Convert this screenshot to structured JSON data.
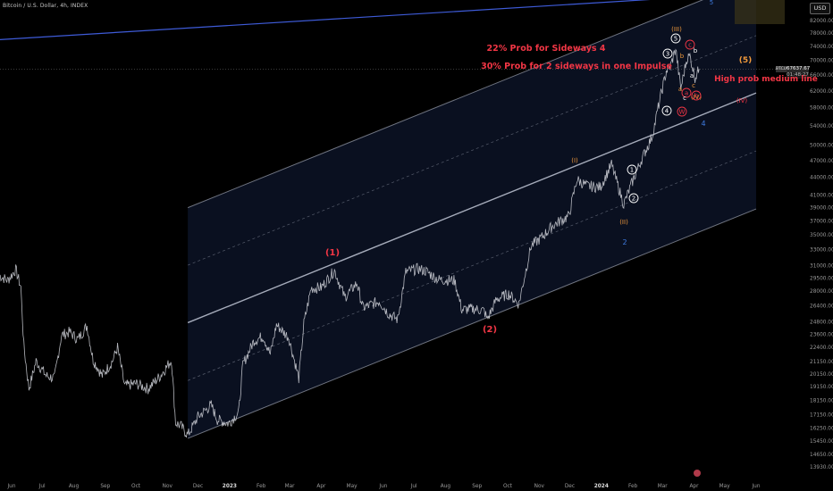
{
  "header": {
    "title": "Bitcoin / U.S. Dollar, 4h, INDEX",
    "currency_button": "USD",
    "symbol_tag": "BTCUSD",
    "last_price": "67637.67",
    "countdown": "01:48:27"
  },
  "colors": {
    "background": "#000000",
    "price_line": "#c9cbd2",
    "channel": "#b6bccb",
    "channel_fill": "#0b1223",
    "trendline": "#3e5bd8",
    "red_text": "#f23645",
    "orange_text": "#f0993b",
    "blue_text": "#3f7be0",
    "white_labels": "#ffffff"
  },
  "chart_data": {
    "type": "line",
    "title": "",
    "xlabel": "",
    "ylabel": "",
    "y_scale": "log",
    "ylim": [
      13200,
      92000
    ],
    "x_tick_labels": [
      "Jun",
      "Jul",
      "Aug",
      "Sep",
      "Oct",
      "Nov",
      "Dec",
      "2023",
      "Feb",
      "Mar",
      "Apr",
      "May",
      "Jun",
      "Jul",
      "Aug",
      "Sep",
      "Oct",
      "Nov",
      "Dec",
      "2024",
      "Feb",
      "Mar",
      "Apr",
      "May",
      "Jun"
    ],
    "y_tick_labels": [
      "82000.00",
      "78000.00",
      "74000.00",
      "70000.00",
      "66000.00",
      "62000.00",
      "58000.00",
      "54000.00",
      "50000.00",
      "47000.00",
      "44000.00",
      "41000.00",
      "39000.00",
      "37000.00",
      "35000.00",
      "33000.00",
      "31000.00",
      "29500.00",
      "28000.00",
      "26400.00",
      "24800.00",
      "23600.00",
      "22400.00",
      "21150.00",
      "20150.00",
      "19150.00",
      "18150.00",
      "17150.00",
      "16250.00",
      "15450.00",
      "14650.00",
      "13930.00"
    ],
    "x_index_dates": [
      "2022-06-01",
      "2022-07-01",
      "2022-08-01",
      "2022-09-01",
      "2022-10-01",
      "2022-11-01",
      "2022-12-01",
      "2023-01-01",
      "2023-02-01",
      "2023-03-01",
      "2023-04-01",
      "2023-05-01",
      "2023-06-01",
      "2023-07-01",
      "2023-08-01",
      "2023-09-01",
      "2023-10-01",
      "2023-11-01",
      "2023-12-01",
      "2024-01-01",
      "2024-02-01",
      "2024-03-01",
      "2024-04-01",
      "2024-05-01",
      "2024-06-01"
    ],
    "series": [
      {
        "x": [
          "2022-05-20",
          "2022-05-28",
          "2022-06-05",
          "2022-06-10",
          "2022-06-13",
          "2022-06-18",
          "2022-06-25",
          "2022-07-05",
          "2022-07-13",
          "2022-07-20",
          "2022-07-28",
          "2022-08-05",
          "2022-08-14",
          "2022-08-20",
          "2022-08-29",
          "2022-09-08",
          "2022-09-13",
          "2022-09-20",
          "2022-10-01",
          "2022-10-13",
          "2022-10-25",
          "2022-11-05",
          "2022-11-09",
          "2022-11-14",
          "2022-11-21",
          "2022-12-01",
          "2022-12-14",
          "2022-12-20",
          "2022-12-31",
          "2023-01-10",
          "2023-01-14",
          "2023-01-25",
          "2023-02-03",
          "2023-02-10",
          "2023-02-16",
          "2023-02-28",
          "2023-03-10",
          "2023-03-15",
          "2023-03-22",
          "2023-04-01",
          "2023-04-14",
          "2023-04-24",
          "2023-05-06",
          "2023-05-12",
          "2023-05-28",
          "2023-06-06",
          "2023-06-15",
          "2023-06-23",
          "2023-07-05",
          "2023-07-13",
          "2023-07-25",
          "2023-08-10",
          "2023-08-17",
          "2023-08-29",
          "2023-09-08",
          "2023-09-11",
          "2023-09-20",
          "2023-10-02",
          "2023-10-12",
          "2023-10-24",
          "2023-11-03",
          "2023-11-15",
          "2023-11-30",
          "2023-12-08",
          "2023-12-18",
          "2023-12-31",
          "2024-01-11",
          "2024-01-23",
          "2024-01-31",
          "2024-02-09",
          "2024-02-20",
          "2024-02-28",
          "2024-03-05",
          "2024-03-09",
          "2024-03-14",
          "2024-03-19",
          "2024-03-25",
          "2024-03-28",
          "2024-04-02",
          "2024-04-06"
        ],
        "y": [
          29800,
          29200,
          30500,
          28500,
          22500,
          19000,
          21200,
          20000,
          19800,
          23500,
          23800,
          23100,
          24400,
          21300,
          20000,
          21200,
          22400,
          19200,
          19400,
          19000,
          20000,
          21300,
          16600,
          16400,
          15800,
          17000,
          17800,
          16800,
          16550,
          17300,
          20900,
          23000,
          23400,
          21800,
          24500,
          23300,
          19800,
          24600,
          28300,
          28400,
          30400,
          27300,
          28900,
          26200,
          26900,
          25600,
          25000,
          30200,
          30600,
          30300,
          29300,
          29200,
          26000,
          26100,
          25900,
          25000,
          27100,
          27700,
          26600,
          33500,
          34600,
          36400,
          37700,
          43600,
          42500,
          42300,
          46300,
          39500,
          43000,
          47000,
          51800,
          60500,
          67200,
          68500,
          73400,
          62500,
          70600,
          71200,
          65400,
          67637.67
        ]
      }
    ],
    "channel": {
      "lower": [
        {
          "x": "2022-11-21",
          "y": 15600
        },
        {
          "x": "2024-06-01",
          "y": 38800
        }
      ],
      "middle": [
        {
          "x": "2022-11-21",
          "y": 24700
        },
        {
          "x": "2024-06-01",
          "y": 61500
        }
      ],
      "upper": [
        {
          "x": "2022-11-21",
          "y": 39000
        },
        {
          "x": "2024-06-01",
          "y": 97000
        }
      ]
    },
    "trendline": [
      {
        "x": "2022-05-20",
        "y": 76000
      },
      {
        "x": "2024-06-01",
        "y": 91500
      }
    ],
    "annotations": [
      {
        "text": "22% Prob for Sideways 4",
        "color": "red"
      },
      {
        "text": "30% Prob for 2 sideways in one Impulse",
        "color": "red"
      },
      {
        "text": "High prob medium line",
        "color": "red"
      },
      {
        "text": "(5)",
        "color": "orange"
      },
      {
        "text": "(1)",
        "color": "red"
      },
      {
        "text": "(2)",
        "color": "red"
      },
      {
        "text": "(III)",
        "color": "orange"
      },
      {
        "text": "(I)",
        "color": "orange"
      },
      {
        "text": "(II)",
        "color": "orange"
      },
      {
        "text": "(IV)",
        "color": "red"
      },
      {
        "text": "(IV)",
        "color": "orange"
      },
      {
        "text": "4",
        "color": "blue"
      },
      {
        "text": "2",
        "color": "blue"
      },
      {
        "text": "5",
        "color": "blue"
      },
      {
        "text": "1",
        "color": "circle"
      },
      {
        "text": "2",
        "color": "circle"
      },
      {
        "text": "3",
        "color": "circle"
      },
      {
        "text": "4",
        "color": "circle"
      },
      {
        "text": "5",
        "color": "circle"
      },
      {
        "text": "a",
        "color": "circle-red"
      },
      {
        "text": "b",
        "color": "circle-red"
      },
      {
        "text": "c",
        "color": "circle-red"
      },
      {
        "text": "W",
        "color": "circle-red"
      },
      {
        "text": "a",
        "color": "orange"
      },
      {
        "text": "b",
        "color": "orange"
      },
      {
        "text": "c",
        "color": "orange"
      },
      {
        "text": "a",
        "color": "white"
      },
      {
        "text": "b",
        "color": "white"
      },
      {
        "text": "c",
        "color": "white"
      }
    ],
    "grid": false,
    "legend": "none"
  }
}
